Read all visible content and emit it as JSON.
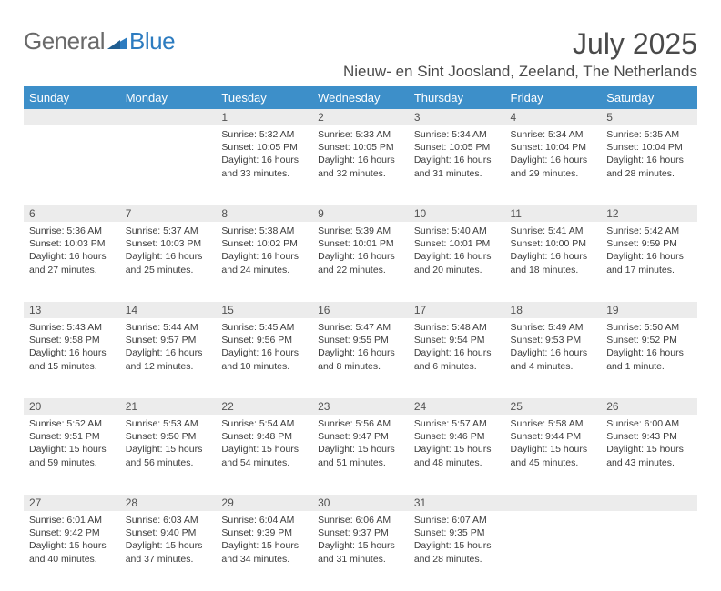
{
  "logo": {
    "part1": "General",
    "part2": "Blue"
  },
  "title": "July 2025",
  "location": "Nieuw- en Sint Joosland, Zeeland, The Netherlands",
  "colors": {
    "header_bg": "#3d8fc9",
    "header_fg": "#ffffff",
    "daynum_bg": "#ececec",
    "text": "#3c3c3c",
    "logo_gray": "#6a6a6a",
    "logo_blue": "#2d7cc0"
  },
  "day_headers": [
    "Sunday",
    "Monday",
    "Tuesday",
    "Wednesday",
    "Thursday",
    "Friday",
    "Saturday"
  ],
  "weeks": [
    [
      null,
      null,
      {
        "n": "1",
        "sr": "5:32 AM",
        "ss": "10:05 PM",
        "dl": "16 hours and 33 minutes."
      },
      {
        "n": "2",
        "sr": "5:33 AM",
        "ss": "10:05 PM",
        "dl": "16 hours and 32 minutes."
      },
      {
        "n": "3",
        "sr": "5:34 AM",
        "ss": "10:05 PM",
        "dl": "16 hours and 31 minutes."
      },
      {
        "n": "4",
        "sr": "5:34 AM",
        "ss": "10:04 PM",
        "dl": "16 hours and 29 minutes."
      },
      {
        "n": "5",
        "sr": "5:35 AM",
        "ss": "10:04 PM",
        "dl": "16 hours and 28 minutes."
      }
    ],
    [
      {
        "n": "6",
        "sr": "5:36 AM",
        "ss": "10:03 PM",
        "dl": "16 hours and 27 minutes."
      },
      {
        "n": "7",
        "sr": "5:37 AM",
        "ss": "10:03 PM",
        "dl": "16 hours and 25 minutes."
      },
      {
        "n": "8",
        "sr": "5:38 AM",
        "ss": "10:02 PM",
        "dl": "16 hours and 24 minutes."
      },
      {
        "n": "9",
        "sr": "5:39 AM",
        "ss": "10:01 PM",
        "dl": "16 hours and 22 minutes."
      },
      {
        "n": "10",
        "sr": "5:40 AM",
        "ss": "10:01 PM",
        "dl": "16 hours and 20 minutes."
      },
      {
        "n": "11",
        "sr": "5:41 AM",
        "ss": "10:00 PM",
        "dl": "16 hours and 18 minutes."
      },
      {
        "n": "12",
        "sr": "5:42 AM",
        "ss": "9:59 PM",
        "dl": "16 hours and 17 minutes."
      }
    ],
    [
      {
        "n": "13",
        "sr": "5:43 AM",
        "ss": "9:58 PM",
        "dl": "16 hours and 15 minutes."
      },
      {
        "n": "14",
        "sr": "5:44 AM",
        "ss": "9:57 PM",
        "dl": "16 hours and 12 minutes."
      },
      {
        "n": "15",
        "sr": "5:45 AM",
        "ss": "9:56 PM",
        "dl": "16 hours and 10 minutes."
      },
      {
        "n": "16",
        "sr": "5:47 AM",
        "ss": "9:55 PM",
        "dl": "16 hours and 8 minutes."
      },
      {
        "n": "17",
        "sr": "5:48 AM",
        "ss": "9:54 PM",
        "dl": "16 hours and 6 minutes."
      },
      {
        "n": "18",
        "sr": "5:49 AM",
        "ss": "9:53 PM",
        "dl": "16 hours and 4 minutes."
      },
      {
        "n": "19",
        "sr": "5:50 AM",
        "ss": "9:52 PM",
        "dl": "16 hours and 1 minute."
      }
    ],
    [
      {
        "n": "20",
        "sr": "5:52 AM",
        "ss": "9:51 PM",
        "dl": "15 hours and 59 minutes."
      },
      {
        "n": "21",
        "sr": "5:53 AM",
        "ss": "9:50 PM",
        "dl": "15 hours and 56 minutes."
      },
      {
        "n": "22",
        "sr": "5:54 AM",
        "ss": "9:48 PM",
        "dl": "15 hours and 54 minutes."
      },
      {
        "n": "23",
        "sr": "5:56 AM",
        "ss": "9:47 PM",
        "dl": "15 hours and 51 minutes."
      },
      {
        "n": "24",
        "sr": "5:57 AM",
        "ss": "9:46 PM",
        "dl": "15 hours and 48 minutes."
      },
      {
        "n": "25",
        "sr": "5:58 AM",
        "ss": "9:44 PM",
        "dl": "15 hours and 45 minutes."
      },
      {
        "n": "26",
        "sr": "6:00 AM",
        "ss": "9:43 PM",
        "dl": "15 hours and 43 minutes."
      }
    ],
    [
      {
        "n": "27",
        "sr": "6:01 AM",
        "ss": "9:42 PM",
        "dl": "15 hours and 40 minutes."
      },
      {
        "n": "28",
        "sr": "6:03 AM",
        "ss": "9:40 PM",
        "dl": "15 hours and 37 minutes."
      },
      {
        "n": "29",
        "sr": "6:04 AM",
        "ss": "9:39 PM",
        "dl": "15 hours and 34 minutes."
      },
      {
        "n": "30",
        "sr": "6:06 AM",
        "ss": "9:37 PM",
        "dl": "15 hours and 31 minutes."
      },
      {
        "n": "31",
        "sr": "6:07 AM",
        "ss": "9:35 PM",
        "dl": "15 hours and 28 minutes."
      },
      null,
      null
    ]
  ],
  "labels": {
    "sunrise": "Sunrise: ",
    "sunset": "Sunset: ",
    "daylight": "Daylight: "
  }
}
